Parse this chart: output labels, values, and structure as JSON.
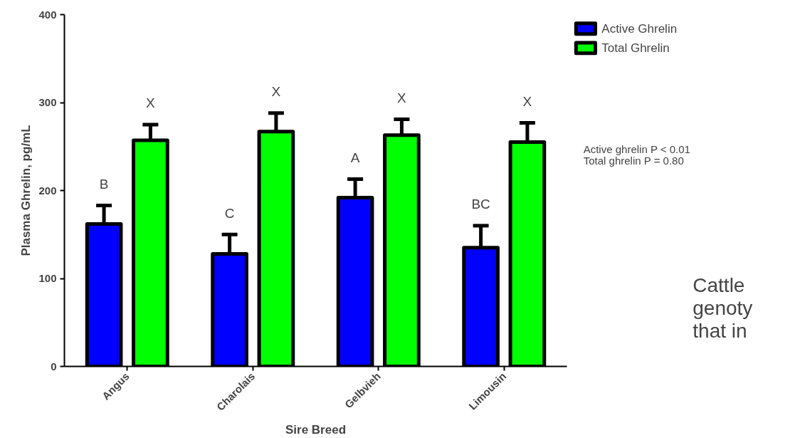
{
  "chart_data": {
    "type": "bar",
    "xlabel": "Sire Breed",
    "ylabel": "Plasma Ghrelin, pg/mL",
    "categories": [
      "Angus",
      "Charolais",
      "Gelbvieh",
      "Limousin"
    ],
    "series": [
      {
        "name": "Active Ghrelin",
        "color": "#0000ff",
        "values": [
          162,
          128,
          192,
          135
        ],
        "errors": [
          21,
          22,
          21,
          25
        ],
        "value_labels": [
          "B",
          "C",
          "A",
          "BC"
        ]
      },
      {
        "name": "Total Ghrelin",
        "color": "#00ff00",
        "values": [
          257,
          267,
          263,
          255
        ],
        "errors": [
          18,
          21,
          18,
          22
        ],
        "value_labels": [
          "X",
          "X",
          "X",
          "X"
        ]
      }
    ],
    "ylim": [
      0,
      400
    ],
    "yticks": [
      0,
      100,
      200,
      300,
      400
    ],
    "grid": false,
    "legend": "top right",
    "annotations": [
      "Active ghrelin P < 0.01",
      "Total ghrelin P = 0.80",
      "Cattle",
      "genoty",
      "that in"
    ]
  }
}
